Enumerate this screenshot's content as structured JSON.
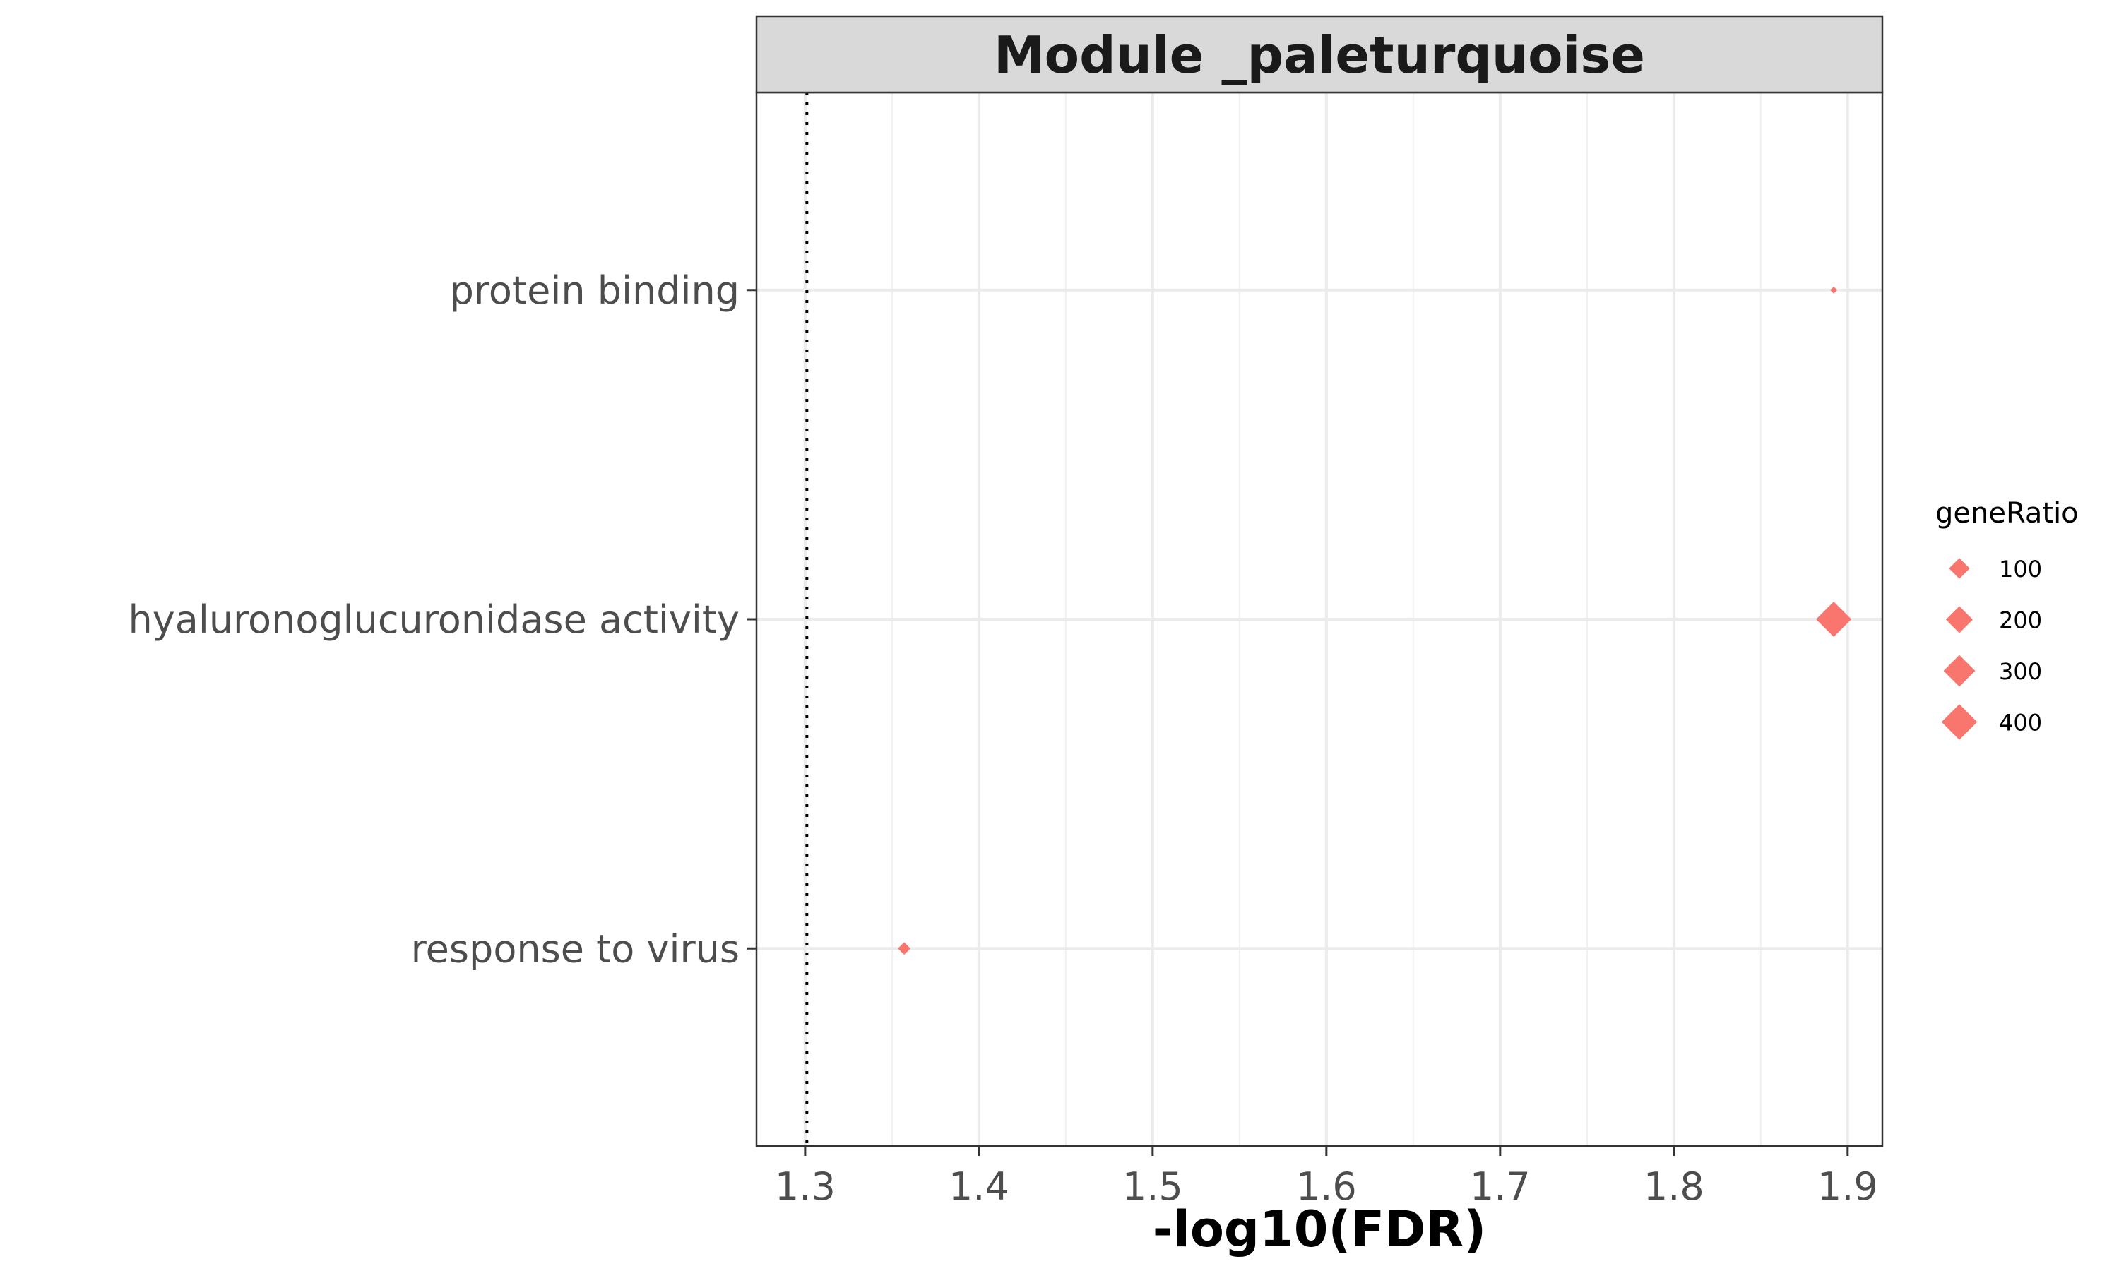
{
  "chart_data": {
    "type": "scatter",
    "title": "Module _paleturquoise",
    "xlabel": "-log10(FDR)",
    "ylabel": "",
    "xlim": [
      1.272,
      1.92
    ],
    "x_ticks": [
      1.3,
      1.4,
      1.5,
      1.6,
      1.7,
      1.8,
      1.9
    ],
    "x_tick_labels": [
      "1.3",
      "1.4",
      "1.5",
      "1.6",
      "1.7",
      "1.8",
      "1.9"
    ],
    "categories": [
      "protein binding",
      "hyaluronoglucuronidase activity",
      "response to virus"
    ],
    "points": [
      {
        "category": "protein binding",
        "x": 1.892,
        "geneRatio": 12
      },
      {
        "category": "hyaluronoglucuronidase activity",
        "x": 1.892,
        "geneRatio": 400
      },
      {
        "category": "response to virus",
        "x": 1.357,
        "geneRatio": 50
      }
    ],
    "reference_line": {
      "x": 1.301,
      "style": "dotted"
    },
    "marker": "diamond",
    "point_color": "#F8766D",
    "grid": true,
    "legend": {
      "title": "geneRatio",
      "placement": "right",
      "entries": [
        {
          "label": "100",
          "value": 100
        },
        {
          "label": "200",
          "value": 200
        },
        {
          "label": "300",
          "value": 300
        },
        {
          "label": "400",
          "value": 400
        }
      ]
    }
  }
}
